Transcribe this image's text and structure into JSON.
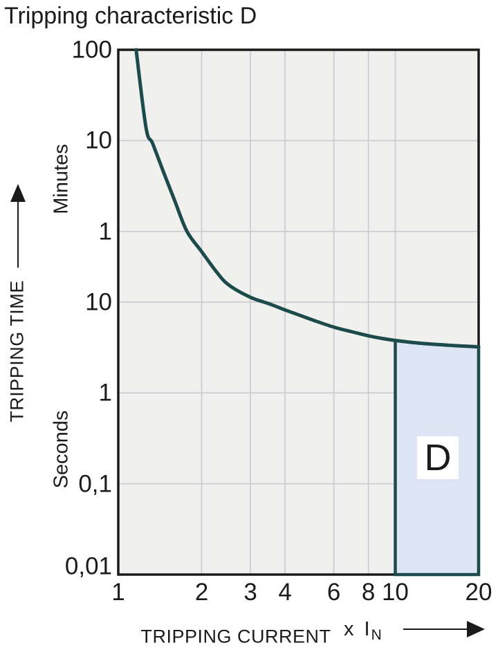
{
  "title": "Tripping characteristic D",
  "chart_data": {
    "type": "line",
    "title": "Tripping characteristic D",
    "x_axis": {
      "label": "TRIPPING CURRENT",
      "unit_label": "x I",
      "unit_sub": "N",
      "scale": "log",
      "range": [
        1,
        20
      ],
      "ticks": [
        {
          "v": 1,
          "label": "1"
        },
        {
          "v": 2,
          "label": "2"
        },
        {
          "v": 3,
          "label": "3"
        },
        {
          "v": 4,
          "label": "4"
        },
        {
          "v": 6,
          "label": "6"
        },
        {
          "v": 8,
          "label": "8"
        },
        {
          "v": 10,
          "label": "10"
        },
        {
          "v": 20,
          "label": "20"
        }
      ]
    },
    "y_axis": {
      "label": "TRIPPING TIME",
      "scale": "log",
      "range_seconds": [
        0.01,
        6000
      ],
      "units_sections": [
        "Minutes",
        "Seconds"
      ],
      "ticks": [
        {
          "t": 6000,
          "label": "100"
        },
        {
          "t": 600,
          "label": "10"
        },
        {
          "t": 60,
          "label": "1"
        },
        {
          "t": 10,
          "label": "10"
        },
        {
          "t": 1,
          "label": "1"
        },
        {
          "t": 0.1,
          "label": "0,1"
        },
        {
          "t": 0.01,
          "label": "0,01"
        }
      ]
    },
    "grid": true,
    "series": [
      {
        "name": "thermal-trip-curve",
        "points_v_t": [
          [
            1.16,
            6000
          ],
          [
            1.26,
            825
          ],
          [
            1.33,
            560
          ],
          [
            1.45,
            280
          ],
          [
            1.6,
            130
          ],
          [
            1.77,
            60
          ],
          [
            2.0,
            36
          ],
          [
            2.25,
            22
          ],
          [
            2.5,
            15.5
          ],
          [
            3.0,
            11.3
          ],
          [
            3.5,
            9.6
          ],
          [
            4.0,
            8.2
          ],
          [
            4.5,
            7.2
          ],
          [
            5.0,
            6.4
          ],
          [
            6.0,
            5.3
          ],
          [
            7.0,
            4.7
          ],
          [
            8.0,
            4.25
          ],
          [
            9.0,
            3.97
          ],
          [
            10.0,
            3.78
          ],
          [
            12.0,
            3.55
          ],
          [
            14.0,
            3.42
          ],
          [
            17.0,
            3.3
          ],
          [
            20.0,
            3.22
          ]
        ]
      }
    ],
    "region": {
      "label": "D",
      "v_from": 10,
      "v_to": 20,
      "t_bottom": 0.01,
      "bounded_above_by": "thermal-trip-curve"
    },
    "colors": {
      "curve": "#1d4b4b",
      "region_fill": "#dde4f3",
      "plot_background": "#f0f0ee",
      "gridline": "#c9cace",
      "plot_border": "#1a1a1a",
      "text": "#1b1b1b",
      "region_label_background": "#ffffff"
    }
  }
}
